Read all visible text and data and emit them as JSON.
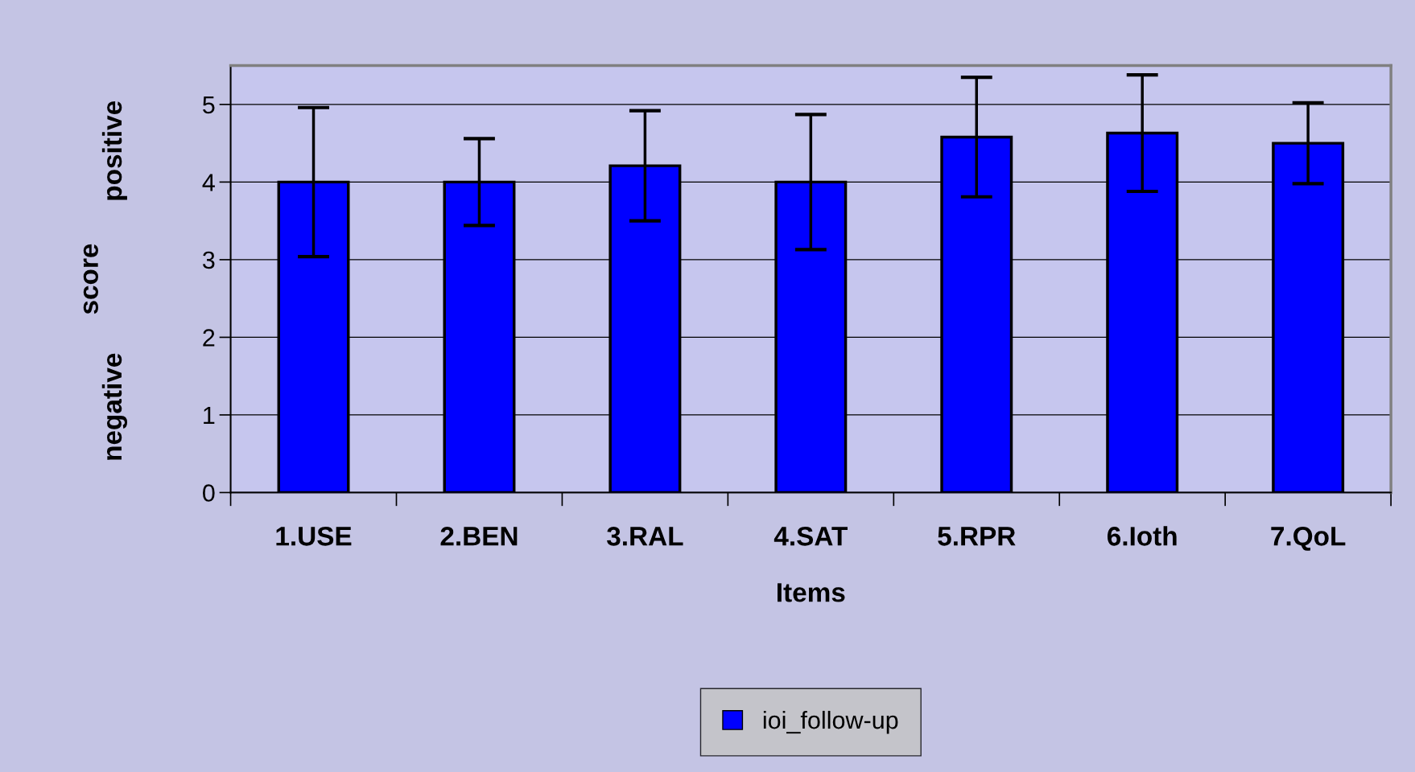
{
  "chart_data": {
    "type": "bar",
    "xlabel": "Items",
    "ylabel": "score",
    "annotations": [
      "positive",
      "negative"
    ],
    "categories": [
      "1.USE",
      "2.BEN",
      "3.RAL",
      "4.SAT",
      "5.RPR",
      "6.Ioth",
      "7.QoL"
    ],
    "series": [
      {
        "name": "ioi_follow-up",
        "color": "#0000ff",
        "values": [
          4.0,
          4.0,
          4.21,
          4.0,
          4.58,
          4.63,
          4.5
        ],
        "errors": [
          0.96,
          0.56,
          0.71,
          0.87,
          0.77,
          0.75,
          0.52
        ]
      }
    ],
    "ylim": [
      0,
      5.5
    ],
    "yticks": [
      0,
      1,
      2,
      3,
      4,
      5
    ],
    "grid": "y",
    "legend": "bottom"
  }
}
